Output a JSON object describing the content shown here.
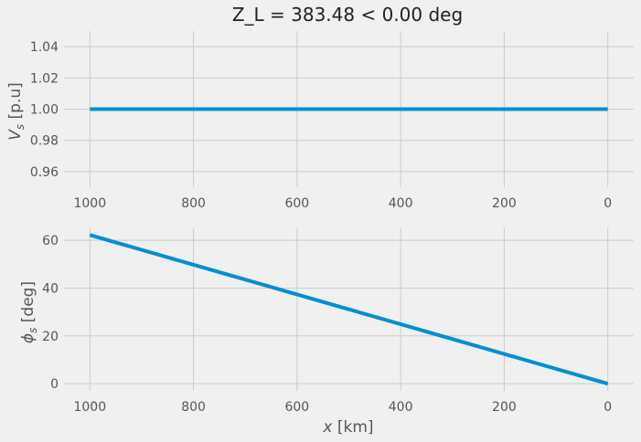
{
  "title": "Z_L = 383.48 < 0.00 deg",
  "chart_data": [
    {
      "type": "line",
      "title": "Z_L = 383.48 < 0.00 deg",
      "xlabel": "",
      "ylabel_main": "V",
      "ylabel_sub": "s",
      "ylabel_unit": " [p.u]",
      "x_inverted": true,
      "xlim": [
        1050,
        -50
      ],
      "ylim": [
        0.95,
        1.05
      ],
      "xticks": [
        1000,
        800,
        600,
        400,
        200,
        0
      ],
      "xtick_labels": [
        "1000",
        "800",
        "600",
        "400",
        "200",
        "0"
      ],
      "yticks": [
        0.96,
        0.98,
        1.0,
        1.02,
        1.04
      ],
      "ytick_labels": [
        "0.96",
        "0.98",
        "1.00",
        "1.02",
        "1.04"
      ],
      "grid": true,
      "color": "#008fd5",
      "series": [
        {
          "x": [
            1000,
            0
          ],
          "y": [
            1.0,
            1.0
          ]
        }
      ]
    },
    {
      "type": "line",
      "xlabel_main": "x",
      "xlabel_unit": " [km]",
      "ylabel_main": "ϕ",
      "ylabel_sub": "s",
      "ylabel_unit": " [deg]",
      "x_inverted": true,
      "xlim": [
        1050,
        -50
      ],
      "ylim": [
        -3,
        65
      ],
      "xticks": [
        1000,
        800,
        600,
        400,
        200,
        0
      ],
      "xtick_labels": [
        "1000",
        "800",
        "600",
        "400",
        "200",
        "0"
      ],
      "yticks": [
        0,
        20,
        40,
        60
      ],
      "ytick_labels": [
        "0",
        "20",
        "40",
        "60"
      ],
      "grid": true,
      "color": "#008fd5",
      "series": [
        {
          "x": [
            1000,
            0
          ],
          "y": [
            62.2,
            0.0
          ]
        }
      ]
    }
  ]
}
